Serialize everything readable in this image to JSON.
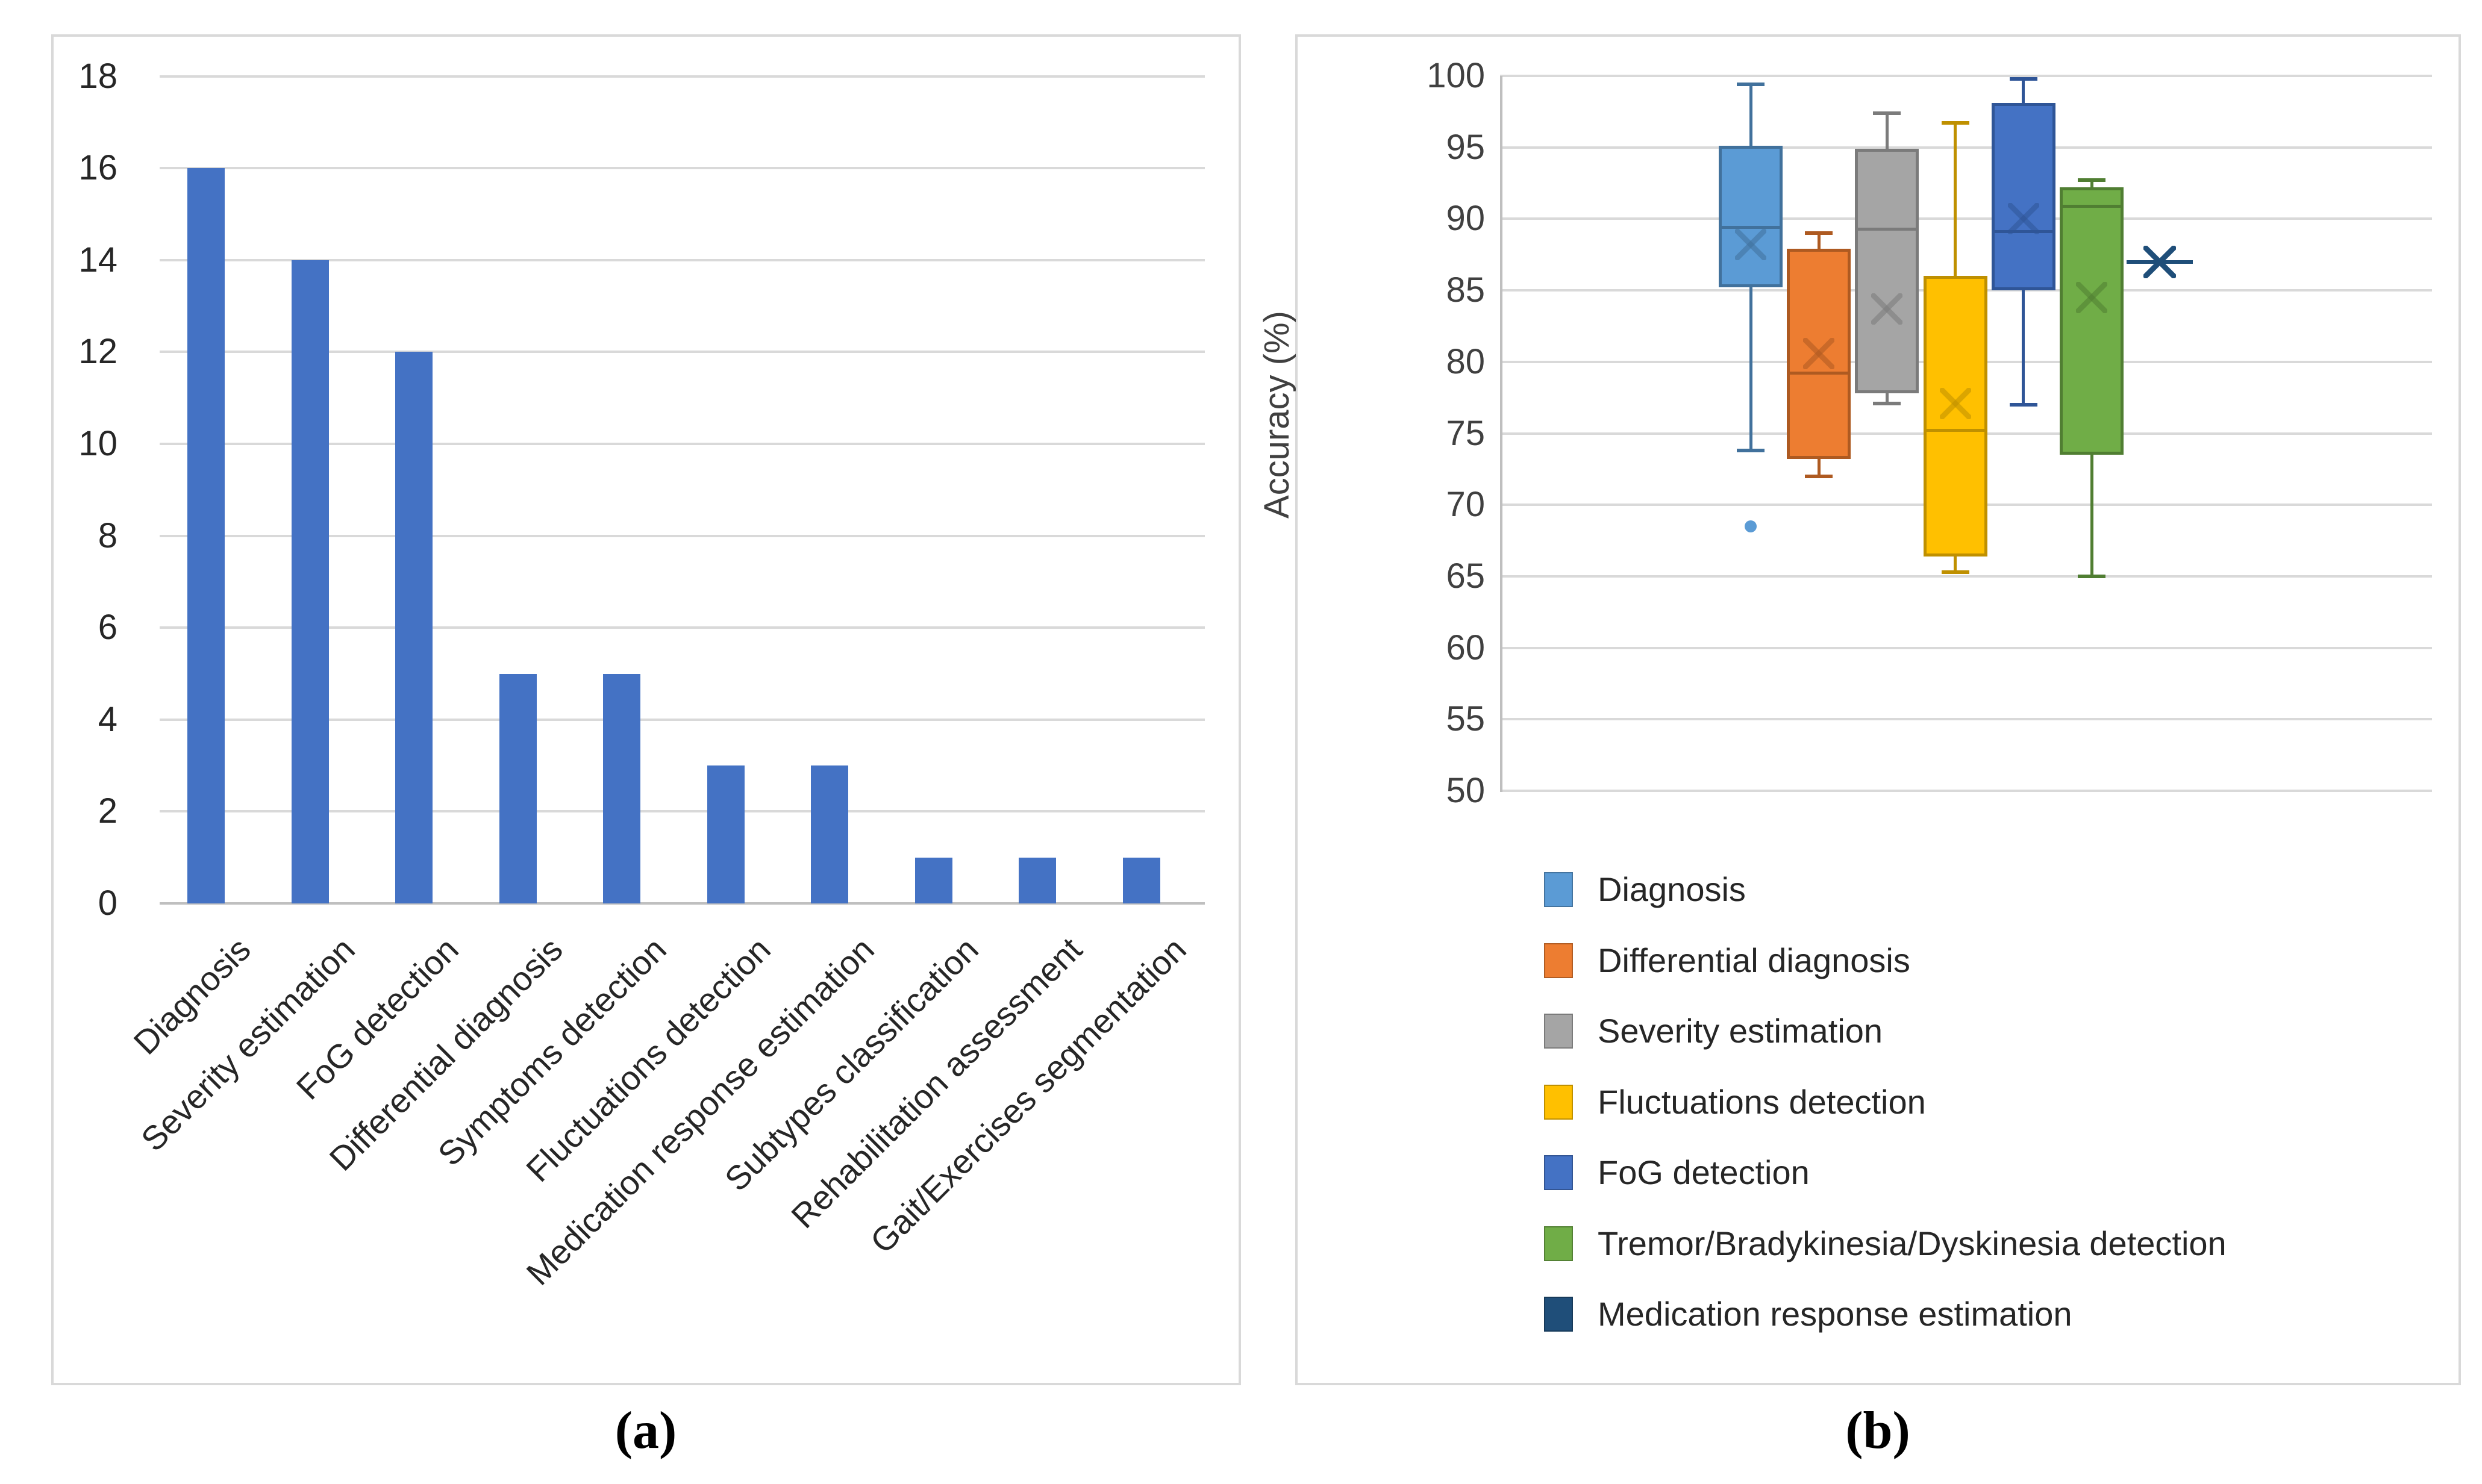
{
  "figure": {
    "caption_a": "(a)",
    "caption_b": "(b)"
  },
  "chart_data": [
    {
      "type": "bar",
      "panel": "a",
      "title": "",
      "xlabel": "",
      "ylabel": "",
      "ylim": [
        0,
        18
      ],
      "ytick_step": 2,
      "grid": true,
      "bar_color": "#4472C4",
      "categories": [
        "Diagnosis",
        "Severity estimation",
        "FoG detection",
        "Differential diagnosis",
        "Symptoms detection",
        "Fluctuations detection",
        "Medication response estimation",
        "Subtypes classification",
        "Rehabilitation assessment",
        "Gait/Exercises segmentation"
      ],
      "values": [
        16,
        14,
        12,
        5,
        5,
        3,
        3,
        1,
        1,
        1
      ]
    },
    {
      "type": "boxplot",
      "panel": "b",
      "title": "",
      "xlabel": "",
      "ylabel": "Accuracy (%)",
      "ylim": [
        50,
        100
      ],
      "ytick_step": 5,
      "grid": true,
      "legend_position": "bottom-left",
      "series": [
        {
          "name": "Diagnosis",
          "color": "#5B9BD5",
          "stroke": "#41719C",
          "min": 73.8,
          "q1": 85.2,
          "median": 89.4,
          "q3": 95.1,
          "max": 99.4,
          "mean": 88.2,
          "outliers": [
            68.5
          ]
        },
        {
          "name": "Differential diagnosis",
          "color": "#ED7D31",
          "stroke": "#AE5A21",
          "min": 72.0,
          "q1": 73.2,
          "median": 79.2,
          "q3": 87.9,
          "max": 89.0,
          "mean": 80.6,
          "outliers": []
        },
        {
          "name": "Severity estimation",
          "color": "#A5A5A5",
          "stroke": "#7B7B7B",
          "min": 77.1,
          "q1": 77.8,
          "median": 89.3,
          "q3": 94.9,
          "max": 97.4,
          "mean": 83.7,
          "outliers": []
        },
        {
          "name": "Fluctuations detection",
          "color": "#FFC000",
          "stroke": "#BF9000",
          "min": 65.3,
          "q1": 66.4,
          "median": 75.2,
          "q3": 86.0,
          "max": 96.7,
          "mean": 77.1,
          "outliers": []
        },
        {
          "name": "FoG detection",
          "color": "#4472C4",
          "stroke": "#2F5597",
          "min": 77.0,
          "q1": 85.0,
          "median": 89.1,
          "q3": 98.1,
          "max": 99.8,
          "mean": 90.0,
          "outliers": []
        },
        {
          "name": "Tremor/Bradykinesia/Dyskinesia detection",
          "color": "#70AD47",
          "stroke": "#507E32",
          "min": 65.0,
          "q1": 73.5,
          "median": 90.9,
          "q3": 92.2,
          "max": 92.7,
          "mean": 84.5,
          "outliers": []
        },
        {
          "name": "Medication response estimation",
          "color": "#1F4E79",
          "stroke": "#1F4E79",
          "single_value": 87.0
        }
      ]
    }
  ]
}
